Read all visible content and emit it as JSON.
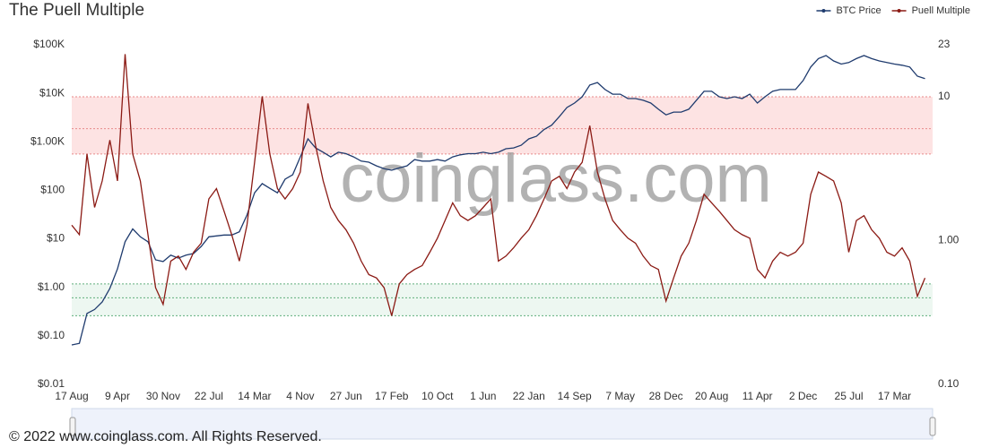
{
  "chart_data": {
    "type": "line",
    "title": "The Puell Multiple",
    "watermark": "coinglass.com",
    "footer": "© 2022 www.coinglass.com. All Rights Reserved.",
    "legend": "top-right",
    "log_scale": true,
    "categories": [
      "17 Aug",
      null,
      null,
      null,
      null,
      null,
      "9 Apr",
      null,
      null,
      null,
      null,
      null,
      "30 Nov",
      null,
      null,
      null,
      null,
      null,
      "22 Jul",
      null,
      null,
      null,
      null,
      null,
      "14 Mar",
      null,
      null,
      null,
      null,
      null,
      "4 Nov",
      null,
      null,
      null,
      null,
      null,
      "27 Jun",
      null,
      null,
      null,
      null,
      null,
      "17 Feb",
      null,
      null,
      null,
      null,
      null,
      "10 Oct",
      null,
      null,
      null,
      null,
      null,
      "1 Jun",
      null,
      null,
      null,
      null,
      null,
      "22 Jan",
      null,
      null,
      null,
      null,
      null,
      "14 Sep",
      null,
      null,
      null,
      null,
      null,
      "7 May",
      null,
      null,
      null,
      null,
      null,
      "28 Dec",
      null,
      null,
      null,
      null,
      null,
      "20 Aug",
      null,
      null,
      null,
      null,
      null,
      "11 Apr",
      null,
      null,
      null,
      null,
      null,
      "2 Dec",
      null,
      null,
      null,
      null,
      null,
      "25 Jul",
      null,
      null,
      null,
      null,
      null,
      "17 Mar",
      null,
      null,
      null,
      null
    ],
    "series": [
      {
        "name": "BTC Price",
        "color": "#1f3b6e",
        "axis": "y",
        "values": [
          0.065,
          0.07,
          0.29,
          0.35,
          0.5,
          0.95,
          2.4,
          8.7,
          16,
          11,
          8.7,
          3.7,
          3.4,
          4.6,
          4.0,
          4.6,
          5,
          7,
          11,
          11.5,
          12,
          12,
          14,
          31,
          89,
          138,
          110,
          89,
          170,
          210,
          490,
          1150,
          750,
          610,
          490,
          610,
          570,
          490,
          400,
          380,
          320,
          280,
          260,
          290,
          320,
          430,
          400,
          400,
          430,
          400,
          490,
          540,
          570,
          570,
          610,
          570,
          610,
          720,
          750,
          850,
          1150,
          1300,
          1800,
          2200,
          3300,
          5100,
          6300,
          8500,
          14800,
          16700,
          12000,
          9600,
          9600,
          7800,
          7800,
          7200,
          6300,
          4700,
          3600,
          4100,
          4100,
          4700,
          7200,
          11000,
          11000,
          8500,
          7800,
          8500,
          7800,
          9600,
          6300,
          8500,
          11000,
          12000,
          12000,
          12000,
          18300,
          34800,
          52000,
          60000,
          46500,
          40000,
          43000,
          52000,
          60000,
          52000,
          46500,
          43000,
          40000,
          38000,
          34800,
          22600,
          20000
        ]
      },
      {
        "name": "Puell Multiple",
        "color": "#8b1a14",
        "axis": "y2",
        "values": [
          1.28,
          1.1,
          4.0,
          1.7,
          2.6,
          5.0,
          2.6,
          19.8,
          4.0,
          2.6,
          1.1,
          0.47,
          0.36,
          0.72,
          0.78,
          0.63,
          0.83,
          0.96,
          1.95,
          2.3,
          1.6,
          1.1,
          0.72,
          1.28,
          3.5,
          10.1,
          4.0,
          2.3,
          1.95,
          2.3,
          3.0,
          9.0,
          4.6,
          2.6,
          1.7,
          1.38,
          1.19,
          0.96,
          0.72,
          0.58,
          0.55,
          0.47,
          0.3,
          0.5,
          0.58,
          0.63,
          0.67,
          0.83,
          1.04,
          1.38,
          1.83,
          1.49,
          1.38,
          1.49,
          1.7,
          1.95,
          0.72,
          0.78,
          0.89,
          1.04,
          1.19,
          1.49,
          1.95,
          2.6,
          2.8,
          2.3,
          3.0,
          3.5,
          6.3,
          3.0,
          1.95,
          1.38,
          1.19,
          1.04,
          0.96,
          0.78,
          0.67,
          0.63,
          0.38,
          0.55,
          0.78,
          0.96,
          1.38,
          2.1,
          1.83,
          1.6,
          1.38,
          1.19,
          1.1,
          1.04,
          0.63,
          0.55,
          0.72,
          0.83,
          0.78,
          0.83,
          0.96,
          2.1,
          3.0,
          2.8,
          2.6,
          1.83,
          0.83,
          1.38,
          1.49,
          1.19,
          1.04,
          0.83,
          0.78,
          0.89,
          0.72,
          0.41,
          0.55
        ]
      }
    ],
    "ylim": [
      0.01,
      100000
    ],
    "yticks": [
      {
        "value": 0.01,
        "label": "$0.01"
      },
      {
        "value": 0.1,
        "label": "$0.10"
      },
      {
        "value": 1,
        "label": "$1.00"
      },
      {
        "value": 10,
        "label": "$10"
      },
      {
        "value": 100,
        "label": "$100"
      },
      {
        "value": 1000,
        "label": "$1.00K"
      },
      {
        "value": 10000,
        "label": "$10K"
      },
      {
        "value": 100000,
        "label": "$100K"
      }
    ],
    "y2lim": [
      0.1,
      23
    ],
    "y2ticks": [
      {
        "value": 0.1,
        "label": "0.10"
      },
      {
        "value": 1,
        "label": "1.00"
      },
      10,
      23
    ],
    "bands": [
      {
        "range": [
          4,
          10
        ],
        "lines": [
          4,
          6,
          10
        ],
        "color": "#fddcdc",
        "line_color": "#e88a8a"
      },
      {
        "range": [
          0.3,
          0.5
        ],
        "lines": [
          0.3,
          0.4,
          0.5
        ],
        "color": "#e9f5ee",
        "line_color": "#5fae7c"
      }
    ]
  }
}
